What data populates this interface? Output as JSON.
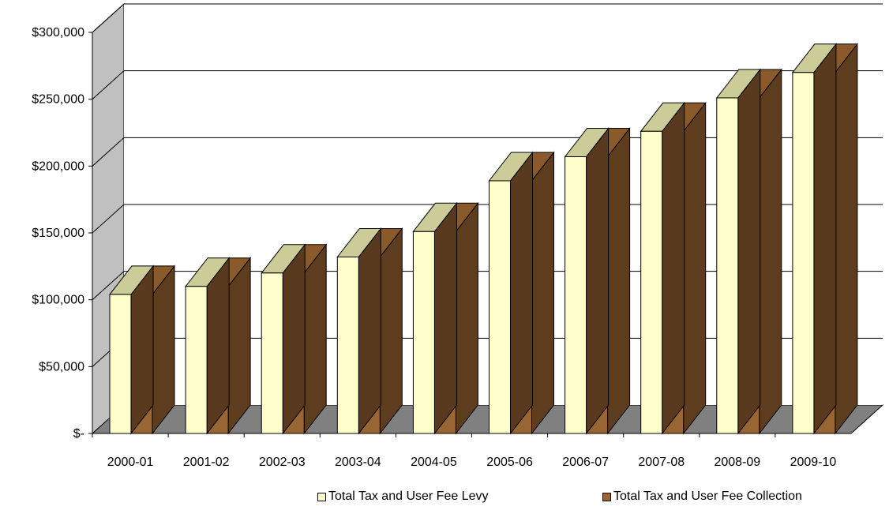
{
  "chart_data": {
    "type": "bar",
    "style": "3d-clustered-column",
    "categories": [
      "2000-01",
      "2001-02",
      "2002-03",
      "2003-04",
      "2004-05",
      "2005-06",
      "2006-07",
      "2007-08",
      "2008-09",
      "2009-10"
    ],
    "series": [
      {
        "name": "Total Tax and User Fee Levy",
        "color": "#FFFFCC",
        "top_color": "#CCCC99",
        "side_color": "#5A3A1E",
        "values": [
          104000,
          110000,
          120000,
          132000,
          151000,
          189000,
          207000,
          226000,
          251000,
          270000
        ]
      },
      {
        "name": "Total Tax and User Fee Collection",
        "color": "#996633",
        "top_color": "#8A5A2B",
        "side_color": "#5E3D1F",
        "values": [
          104000,
          110000,
          120000,
          132000,
          151000,
          189000,
          207000,
          226000,
          251000,
          270000
        ]
      }
    ],
    "y_ticks": [
      "$-",
      "$50,000",
      "$100,000",
      "$150,000",
      "$200,000",
      "$250,000",
      "$300,000"
    ],
    "ylim": [
      0,
      300000
    ],
    "grid": true,
    "legend_position": "bottom",
    "wall_color": "#C0C0C0",
    "floor_color": "#808080"
  }
}
